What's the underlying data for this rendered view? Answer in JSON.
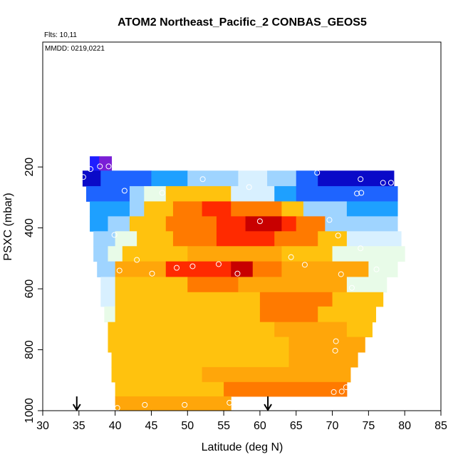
{
  "chart_data": {
    "type": "curtain",
    "title": "ATOM2 Northeast_Pacific_2 CONBAS_GEOS5",
    "subtitle": "Flts: 10,11",
    "annotation": "MMDD: 0219,0221",
    "x_label": "Latitude (deg N)",
    "y_label": "PSXC (mbar)",
    "xlim": [
      30,
      85
    ],
    "xticks": [
      30,
      35,
      40,
      45,
      50,
      55,
      60,
      65,
      70,
      75,
      80,
      85
    ],
    "ylim": [
      1000,
      -210
    ],
    "yticks": [
      200,
      400,
      600,
      800,
      1000
    ],
    "rows": [
      {
        "p": [
          165,
          212
        ],
        "cells": [
          {
            "lat": [
              36.5,
              37.8
            ],
            "color": "#1e1eff"
          },
          {
            "lat": [
              37.8,
              39.5
            ],
            "color": "#7a1fd6"
          }
        ]
      },
      {
        "p": [
          212,
          263
        ],
        "cells": [
          {
            "lat": [
              35.5,
              38
            ],
            "color": "#0a0ac8"
          },
          {
            "lat": [
              38,
              45
            ],
            "color": "#1e64ff"
          },
          {
            "lat": [
              45,
              50
            ],
            "color": "#1ea0ff"
          },
          {
            "lat": [
              50,
              57
            ],
            "color": "#9fd4ff"
          },
          {
            "lat": [
              57,
              61
            ],
            "color": "#d8f0ff"
          },
          {
            "lat": [
              61,
              65
            ],
            "color": "#9fd4ff"
          },
          {
            "lat": [
              65,
              68
            ],
            "color": "#1e64ff"
          },
          {
            "lat": [
              68,
              78.5
            ],
            "color": "#0a0ac8"
          }
        ]
      },
      {
        "p": [
          263,
          313
        ],
        "cells": [
          {
            "lat": [
              36,
              42
            ],
            "color": "#1e64ff"
          },
          {
            "lat": [
              42,
              44
            ],
            "color": "#9fd4ff"
          },
          {
            "lat": [
              44,
              47
            ],
            "color": "#e8fbe8"
          },
          {
            "lat": [
              47,
              56
            ],
            "color": "#ffc20e"
          },
          {
            "lat": [
              56,
              62
            ],
            "color": "#d8f0ff"
          },
          {
            "lat": [
              62,
              65
            ],
            "color": "#1ea0ff"
          },
          {
            "lat": [
              65,
              79
            ],
            "color": "#1e64ff"
          }
        ]
      },
      {
        "p": [
          313,
          362
        ],
        "cells": [
          {
            "lat": [
              36.5,
              42
            ],
            "color": "#1ea0ff"
          },
          {
            "lat": [
              42,
              44
            ],
            "color": "#9fd4ff"
          },
          {
            "lat": [
              44,
              48
            ],
            "color": "#ffc20e"
          },
          {
            "lat": [
              48,
              52
            ],
            "color": "#ff7a00"
          },
          {
            "lat": [
              52,
              56
            ],
            "color": "#ff2a00"
          },
          {
            "lat": [
              56,
              63
            ],
            "color": "#ff7a00"
          },
          {
            "lat": [
              63,
              66
            ],
            "color": "#ffc20e"
          },
          {
            "lat": [
              66,
              72
            ],
            "color": "#9fd4ff"
          },
          {
            "lat": [
              72,
              79
            ],
            "color": "#1ea0ff"
          }
        ]
      },
      {
        "p": [
          362,
          411
        ],
        "cells": [
          {
            "lat": [
              36.5,
              39
            ],
            "color": "#1ea0ff"
          },
          {
            "lat": [
              39,
              42
            ],
            "color": "#9fd4ff"
          },
          {
            "lat": [
              42,
              47
            ],
            "color": "#ffc20e"
          },
          {
            "lat": [
              47,
              54
            ],
            "color": "#ff7a00"
          },
          {
            "lat": [
              54,
              58
            ],
            "color": "#ff2a00"
          },
          {
            "lat": [
              58,
              63
            ],
            "color": "#c80000"
          },
          {
            "lat": [
              63,
              65
            ],
            "color": "#ff2a00"
          },
          {
            "lat": [
              65,
              69
            ],
            "color": "#ff7a00"
          },
          {
            "lat": [
              69,
              79
            ],
            "color": "#9fd4ff"
          }
        ]
      },
      {
        "p": [
          411,
          460
        ],
        "cells": [
          {
            "lat": [
              37,
              40
            ],
            "color": "#9fd4ff"
          },
          {
            "lat": [
              40,
              43
            ],
            "color": "#e8fbe8"
          },
          {
            "lat": [
              43,
              48
            ],
            "color": "#ffc20e"
          },
          {
            "lat": [
              48,
              54
            ],
            "color": "#ff7a00"
          },
          {
            "lat": [
              54,
              62
            ],
            "color": "#ff2a00"
          },
          {
            "lat": [
              62,
              68
            ],
            "color": "#ff7a00"
          },
          {
            "lat": [
              68,
              72
            ],
            "color": "#ffc20e"
          },
          {
            "lat": [
              72,
              79.5
            ],
            "color": "#d8f0ff"
          }
        ]
      },
      {
        "p": [
          460,
          510
        ],
        "cells": [
          {
            "lat": [
              37,
              39
            ],
            "color": "#9fd4ff"
          },
          {
            "lat": [
              39,
              41
            ],
            "color": "#e8fbe8"
          },
          {
            "lat": [
              41,
              50
            ],
            "color": "#ffc20e"
          },
          {
            "lat": [
              50,
              63
            ],
            "color": "#ffa60a"
          },
          {
            "lat": [
              63,
              70
            ],
            "color": "#ffc20e"
          },
          {
            "lat": [
              70,
              80
            ],
            "color": "#e8fbe8"
          }
        ]
      },
      {
        "p": [
          510,
          561
        ],
        "cells": [
          {
            "lat": [
              37.5,
              40
            ],
            "color": "#9fd4ff"
          },
          {
            "lat": [
              40,
              47
            ],
            "color": "#ffa60a"
          },
          {
            "lat": [
              47,
              56
            ],
            "color": "#ff2a00"
          },
          {
            "lat": [
              56,
              59
            ],
            "color": "#c80000"
          },
          {
            "lat": [
              59,
              63
            ],
            "color": "#ff7a00"
          },
          {
            "lat": [
              63,
              75
            ],
            "color": "#ffa60a"
          },
          {
            "lat": [
              75,
              79
            ],
            "color": "#e8fbe8"
          }
        ]
      },
      {
        "p": [
          561,
          611
        ],
        "cells": [
          {
            "lat": [
              38,
              40
            ],
            "color": "#d8f0ff"
          },
          {
            "lat": [
              40,
              50
            ],
            "color": "#ffc20e"
          },
          {
            "lat": [
              50,
              57
            ],
            "color": "#ff7a00"
          },
          {
            "lat": [
              57,
              72
            ],
            "color": "#ffa60a"
          },
          {
            "lat": [
              72,
              77.5
            ],
            "color": "#e8fbe8"
          }
        ]
      },
      {
        "p": [
          611,
          658
        ],
        "cells": [
          {
            "lat": [
              38,
              40
            ],
            "color": "#d8f0ff"
          },
          {
            "lat": [
              40,
              60
            ],
            "color": "#ffc20e"
          },
          {
            "lat": [
              60,
              70
            ],
            "color": "#ff7a00"
          },
          {
            "lat": [
              70,
              77
            ],
            "color": "#ffc20e"
          }
        ]
      },
      {
        "p": [
          658,
          709
        ],
        "cells": [
          {
            "lat": [
              38.5,
              40
            ],
            "color": "#e8fbe8"
          },
          {
            "lat": [
              40,
              60
            ],
            "color": "#ffc20e"
          },
          {
            "lat": [
              60,
              68
            ],
            "color": "#ff7a00"
          },
          {
            "lat": [
              68,
              76
            ],
            "color": "#ffc20e"
          }
        ]
      },
      {
        "p": [
          709,
          758
        ],
        "cells": [
          {
            "lat": [
              39,
              62
            ],
            "color": "#ffc20e"
          },
          {
            "lat": [
              62,
              72
            ],
            "color": "#ffa60a"
          },
          {
            "lat": [
              72,
              75.5
            ],
            "color": "#ffc20e"
          }
        ]
      },
      {
        "p": [
          758,
          808
        ],
        "cells": [
          {
            "lat": [
              39,
              64
            ],
            "color": "#ffc20e"
          },
          {
            "lat": [
              64,
              74.5
            ],
            "color": "#ffa60a"
          }
        ]
      },
      {
        "p": [
          808,
          857
        ],
        "cells": [
          {
            "lat": [
              39.5,
              64
            ],
            "color": "#ffc20e"
          },
          {
            "lat": [
              64,
              73.5
            ],
            "color": "#ffa60a"
          }
        ]
      },
      {
        "p": [
          857,
          906
        ],
        "cells": [
          {
            "lat": [
              39.5,
              52
            ],
            "color": "#ffc20e"
          },
          {
            "lat": [
              52,
              72.5
            ],
            "color": "#ffa60a"
          }
        ]
      },
      {
        "p": [
          906,
          953
        ],
        "cells": [
          {
            "lat": [
              40,
              55
            ],
            "color": "#ffc20e"
          },
          {
            "lat": [
              55,
              72
            ],
            "color": "#ff7a00"
          }
        ]
      },
      {
        "p": [
          953,
          1000
        ],
        "cells": [
          {
            "lat": [
              40,
              56
            ],
            "color": "#ffa60a"
          }
        ]
      }
    ],
    "points": {
      "color": "#ffffff",
      "lat": [
        35.6,
        36.6,
        37.9,
        39.1,
        41.3,
        46.5,
        52.1,
        58.5,
        67.9,
        73.9,
        77.0,
        78.1,
        73.4,
        74.0,
        39.9,
        60.0,
        69.6,
        70.8,
        73.9,
        64.3,
        66.2,
        40.6,
        43.0,
        45.1,
        48.5,
        50.7,
        54.3,
        56.9,
        71.2,
        76.1,
        72.7,
        70.5,
        70.4,
        70.2,
        71.3,
        71.9,
        40.3,
        44.1,
        49.6,
        55.8
      ],
      "p": [
        233,
        207,
        198,
        198,
        278,
        285,
        240,
        266,
        219,
        240,
        252,
        252,
        287,
        285,
        423,
        378,
        374,
        425,
        467,
        496,
        521,
        540,
        505,
        550,
        531,
        526,
        519,
        550,
        552,
        536,
        597,
        772,
        803,
        939,
        937,
        923,
        991,
        981,
        981,
        974
      ]
    },
    "arrows": [
      34.7,
      61.1
    ]
  }
}
